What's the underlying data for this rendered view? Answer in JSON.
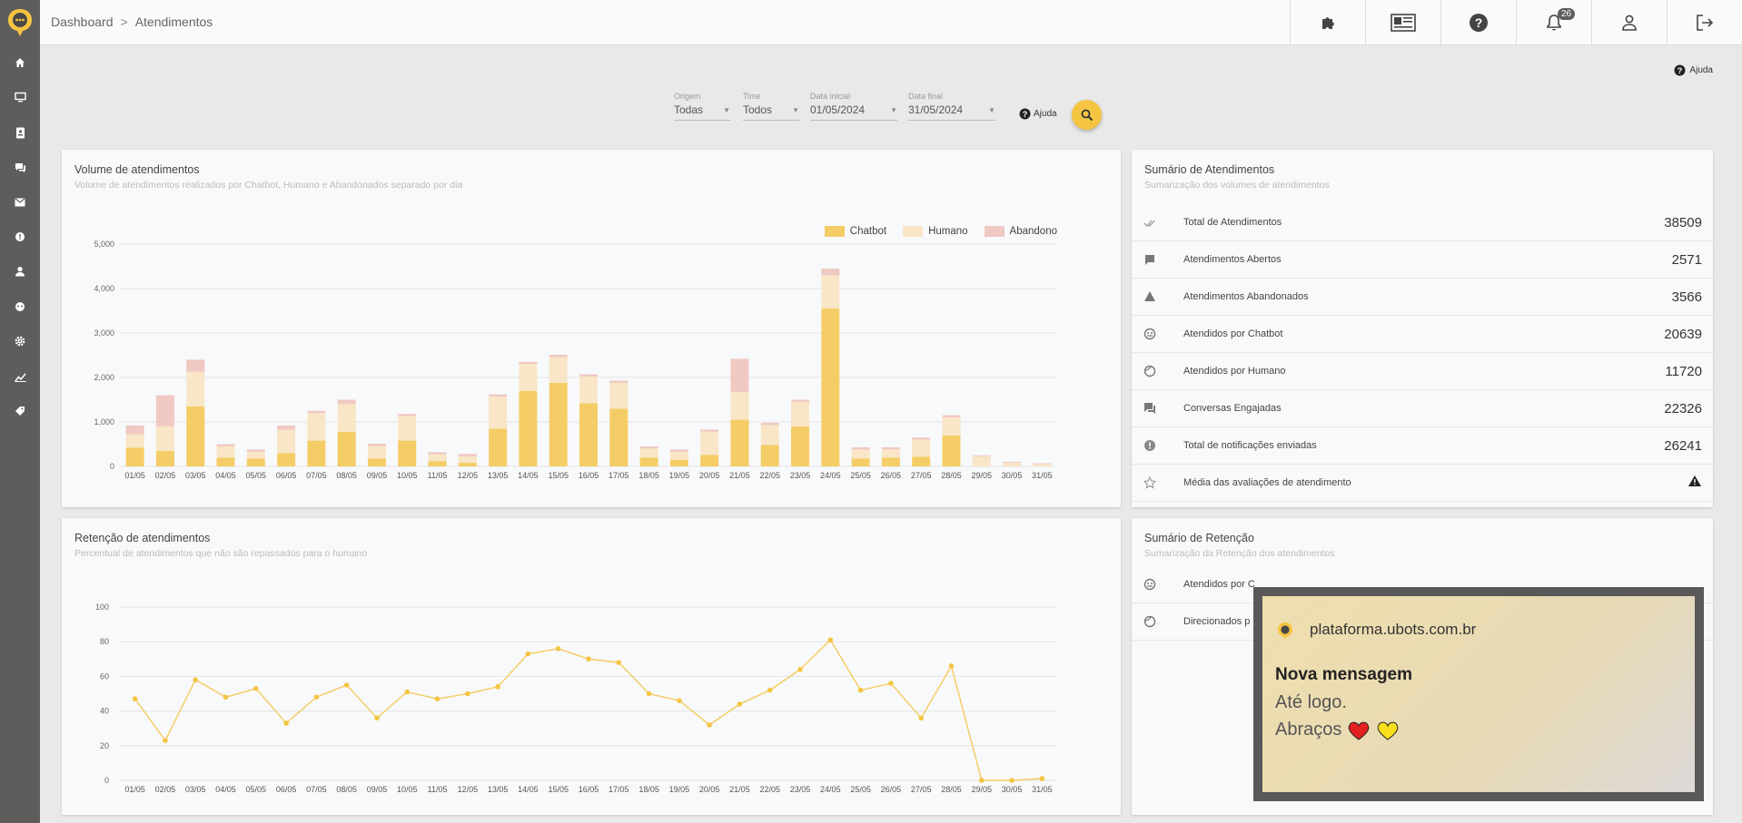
{
  "breadcrumb": {
    "root": "Dashboard",
    "current": "Atendimentos"
  },
  "topbar": {
    "notification_count": "26"
  },
  "help_label": "Ajuda",
  "filters": {
    "origem": {
      "label": "Origem",
      "value": "Todas"
    },
    "time": {
      "label": "Time",
      "value": "Todos"
    },
    "data_inicial": {
      "label": "Data inicial",
      "value": "01/05/2024"
    },
    "data_final": {
      "label": "Data final",
      "value": "31/05/2024"
    },
    "help": "Ajuda"
  },
  "volume_card": {
    "title": "Volume de atendimentos",
    "subtitle": "Volume de atendimentos realizados por Chatbot, Humano e Abandonados separado por dia"
  },
  "retention_card": {
    "title": "Retenção de atendimentos",
    "subtitle": "Percentual de atendimentos que não são repassados para o humano"
  },
  "summary_card": {
    "title": "Sumário de Atendimentos",
    "subtitle": "Sumarização dos volumes de atendimentos",
    "rows": [
      {
        "icon": "double-check-icon",
        "label": "Total de Atendimentos",
        "value": "38509"
      },
      {
        "icon": "chat-bubble-icon",
        "label": "Atendimentos Abertos",
        "value": "2571"
      },
      {
        "icon": "warning-icon",
        "label": "Atendimentos Abandonados",
        "value": "3566"
      },
      {
        "icon": "robot-face-icon",
        "label": "Atendidos por Chatbot",
        "value": "20639"
      },
      {
        "icon": "human-face-icon",
        "label": "Atendidos por Humano",
        "value": "11720"
      },
      {
        "icon": "forum-icon",
        "label": "Conversas Engajadas",
        "value": "22326"
      },
      {
        "icon": "notification-alert-icon",
        "label": "Total de notificações enviadas",
        "value": "26241"
      },
      {
        "icon": "star-outline-icon",
        "label": "Média das avaliações de atendimento",
        "value": ""
      }
    ]
  },
  "retention_summary_card": {
    "title": "Sumário de Retenção",
    "subtitle": "Sumarização da Retenção dos atendimentos",
    "rows": [
      {
        "icon": "robot-face-icon",
        "label": "Atendidos por C"
      },
      {
        "icon": "human-face-icon",
        "label": "Direcionados p"
      }
    ]
  },
  "notification": {
    "site": "plataforma.ubots.com.br",
    "title": "Nova mensagem",
    "line1": "Até logo.",
    "line2": "Abraços"
  },
  "colors": {
    "chatbot": "#f5cd67",
    "humano": "#f8e6c6",
    "abandono": "#efc9c2",
    "accent": "#f5c542",
    "sidebar": "#5f5d5c"
  },
  "chart_data": [
    {
      "type": "bar",
      "stacked": true,
      "categories": [
        "01/05",
        "02/05",
        "03/05",
        "04/05",
        "05/05",
        "06/05",
        "07/05",
        "08/05",
        "09/05",
        "10/05",
        "11/05",
        "12/05",
        "13/05",
        "14/05",
        "15/05",
        "16/05",
        "17/05",
        "18/05",
        "19/05",
        "20/05",
        "21/05",
        "22/05",
        "23/05",
        "24/05",
        "25/05",
        "26/05",
        "27/05",
        "28/05",
        "29/05",
        "30/05",
        "31/05"
      ],
      "series": [
        {
          "name": "Chatbot",
          "values": [
            420,
            350,
            1350,
            200,
            180,
            300,
            580,
            780,
            180,
            580,
            120,
            80,
            850,
            1700,
            1880,
            1420,
            1300,
            200,
            150,
            260,
            1050,
            480,
            900,
            3550,
            180,
            200,
            220,
            700,
            0,
            0,
            0
          ]
        },
        {
          "name": "Humano",
          "values": [
            300,
            550,
            780,
            250,
            150,
            520,
            620,
            620,
            280,
            550,
            150,
            150,
            720,
            600,
            580,
            600,
            580,
            200,
            180,
            520,
            620,
            450,
            550,
            750,
            200,
            180,
            380,
            400,
            230,
            80,
            50
          ]
        },
        {
          "name": "Abandono",
          "values": [
            200,
            700,
            270,
            50,
            50,
            100,
            50,
            100,
            50,
            50,
            50,
            50,
            50,
            50,
            50,
            50,
            50,
            50,
            50,
            50,
            750,
            50,
            50,
            150,
            50,
            50,
            50,
            50,
            20,
            20,
            20
          ]
        }
      ],
      "ylim": [
        0,
        5000
      ],
      "yticks": [
        "0",
        "1,000",
        "2,000",
        "3,000",
        "4,000",
        "5,000"
      ],
      "legend": "top-right",
      "grid": true
    },
    {
      "type": "line",
      "categories": [
        "01/05",
        "02/05",
        "03/05",
        "04/05",
        "05/05",
        "06/05",
        "07/05",
        "08/05",
        "09/05",
        "10/05",
        "11/05",
        "12/05",
        "13/05",
        "14/05",
        "15/05",
        "16/05",
        "17/05",
        "18/05",
        "19/05",
        "20/05",
        "21/05",
        "22/05",
        "23/05",
        "24/05",
        "25/05",
        "26/05",
        "27/05",
        "28/05",
        "29/05",
        "30/05",
        "31/05"
      ],
      "values": [
        47,
        23,
        58,
        48,
        53,
        33,
        48,
        55,
        36,
        51,
        47,
        50,
        54,
        73,
        76,
        70,
        68,
        50,
        46,
        32,
        44,
        52,
        64,
        81,
        52,
        56,
        36,
        66,
        0,
        0,
        1
      ],
      "ylim": [
        0,
        100
      ],
      "yticks": [
        "0",
        "20",
        "40",
        "60",
        "80",
        "100"
      ],
      "grid": true
    }
  ]
}
